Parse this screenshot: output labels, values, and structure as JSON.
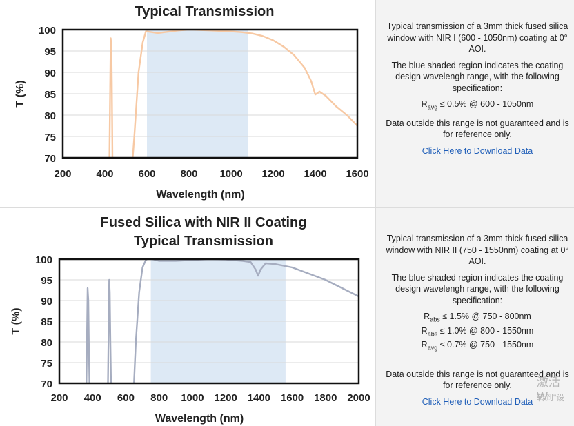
{
  "panels": [
    {
      "title_lines": [
        "Typical Transmission"
      ],
      "description": "Typical transmission of a 3mm thick fused silica window with NIR I (600 - 1050nm) coating at 0° AOI.",
      "shaded_note": "The blue shaded region indicates the coating design wavelengh range, with the following specification:",
      "specs": [
        {
          "symbol": "R",
          "sub": "avg",
          "text": "≤ 0.5% @ 600 - 1050nm"
        }
      ],
      "disclaimer": "Data outside this range is not guaranteed and is for reference only.",
      "link": "Click Here to Download Data"
    },
    {
      "title_lines": [
        "Fused Silica with NIR II Coating",
        "Typical Transmission"
      ],
      "description": "Typical transmission of a 3mm thick fused silica window with NIR II (750 - 1550nm) coating at 0° AOI.",
      "shaded_note": "The blue shaded region indicates the coating design wavelengh range, with the following specification:",
      "specs": [
        {
          "symbol": "R",
          "sub": "abs",
          "text": "≤ 1.5% @ 750 - 800nm"
        },
        {
          "symbol": "R",
          "sub": "abs",
          "text": "≤ 1.0% @ 800 - 1550nm"
        },
        {
          "symbol": "R",
          "sub": "avg",
          "text": "≤ 0.7% @ 750 - 1550nm"
        }
      ],
      "disclaimer": "Data outside this range is not guaranteed and is for reference only.",
      "link": "Click Here to Download Data"
    }
  ],
  "watermark": {
    "line1": "激活 W",
    "line2": "转到\"设"
  },
  "colors": {
    "curve1": "#f7c9a4",
    "curve2": "#a6adc0",
    "shade": "#dde9f5",
    "grid": "#d9d9d9",
    "link": "#1f5eb8"
  },
  "chart_data": [
    {
      "type": "line",
      "title": "Typical Transmission",
      "xlabel": "Wavelength (nm)",
      "ylabel": "T (%)",
      "xlim": [
        200,
        1600
      ],
      "ylim": [
        70,
        100
      ],
      "xticks": [
        200,
        400,
        600,
        800,
        1000,
        1200,
        1400,
        1600
      ],
      "yticks": [
        70,
        75,
        80,
        85,
        90,
        95,
        100
      ],
      "shaded_range": [
        600,
        1080
      ],
      "grid": true,
      "series": [
        {
          "color": "#f7c9a4",
          "x": [
            420,
            425,
            428,
            431,
            433,
            436,
            440,
            520,
            540,
            560,
            580,
            595,
            610,
            650,
            700,
            750,
            800,
            850,
            900,
            950,
            1000,
            1050,
            1100,
            1150,
            1200,
            1250,
            1300,
            1350,
            1380,
            1400,
            1420,
            1450,
            1500,
            1550,
            1600
          ],
          "y": [
            62,
            85,
            98,
            96,
            88,
            70,
            62,
            62,
            75,
            90,
            97,
            99.6,
            99.5,
            99.2,
            99.5,
            99.8,
            100,
            99.9,
            99.8,
            99.7,
            99.6,
            99.4,
            99.1,
            98.5,
            97.5,
            96,
            94,
            91,
            88,
            84.8,
            85.5,
            84.5,
            82,
            80,
            77.5
          ]
        }
      ]
    },
    {
      "type": "line",
      "title": "Fused Silica with NIR II Coating Typical Transmission",
      "xlabel": "Wavelength (nm)",
      "ylabel": "T (%)",
      "xlim": [
        200,
        2000
      ],
      "ylim": [
        70,
        100
      ],
      "xticks": [
        200,
        400,
        600,
        800,
        1000,
        1200,
        1400,
        1600,
        1800,
        2000
      ],
      "yticks": [
        70,
        75,
        80,
        85,
        90,
        95,
        100
      ],
      "shaded_range": [
        750,
        1560
      ],
      "grid": true,
      "series": [
        {
          "color": "#a6adc0",
          "x": [
            360,
            366,
            370,
            374,
            378,
            384,
            490,
            497,
            500,
            503,
            507,
            514,
            640,
            660,
            680,
            700,
            720,
            740,
            760,
            800,
            900,
            1000,
            1100,
            1200,
            1300,
            1350,
            1380,
            1395,
            1410,
            1440,
            1500,
            1600,
            1700,
            1800,
            1900,
            2000
          ],
          "y": [
            62,
            80,
            93,
            90,
            78,
            62,
            62,
            85,
            95,
            92,
            80,
            62,
            62,
            80,
            92,
            98,
            99.8,
            100.3,
            100,
            99.6,
            99.6,
            99.8,
            100,
            99.9,
            99.6,
            99.3,
            97.5,
            96,
            97.5,
            99,
            98.8,
            98,
            96.5,
            95,
            93,
            91
          ]
        }
      ]
    }
  ]
}
